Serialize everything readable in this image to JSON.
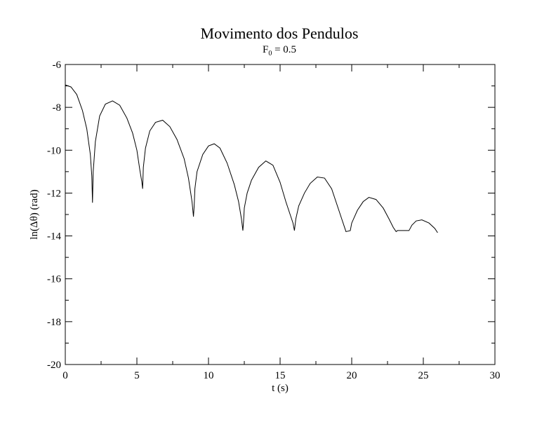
{
  "chart_data": {
    "type": "line",
    "title": "Movimento dos Pendulos",
    "subtitle": {
      "base": "F",
      "subscript": "0",
      "rest": " = 0.5"
    },
    "xlabel": "t (s)",
    "ylabel": "ln(Δθ) (rad)",
    "xlim": [
      0,
      30
    ],
    "ylim": [
      -20,
      -6
    ],
    "x_ticks": [
      0,
      5,
      10,
      15,
      20,
      25,
      30
    ],
    "x_tick_labels": [
      "0",
      "5",
      "10",
      "15",
      "20",
      "25",
      "30"
    ],
    "y_ticks": [
      -20,
      -18,
      -16,
      -14,
      -12,
      -10,
      -8,
      -6
    ],
    "y_tick_labels": [
      "-20",
      "-18",
      "-16",
      "-14",
      "-12",
      "-10",
      "-8",
      "-6"
    ],
    "x_minor_step": 2.5,
    "y_minor_step": 1,
    "grid": false,
    "legend": "none",
    "series": [
      {
        "color": "#000000",
        "x": [
          0.0,
          0.4,
          0.8,
          1.2,
          1.5,
          1.75,
          1.85,
          1.9,
          1.95,
          2.1,
          2.4,
          2.8,
          3.3,
          3.8,
          4.3,
          4.7,
          5.0,
          5.2,
          5.35,
          5.4,
          5.45,
          5.6,
          5.9,
          6.3,
          6.8,
          7.3,
          7.8,
          8.3,
          8.6,
          8.85,
          8.95,
          9.0,
          9.05,
          9.2,
          9.6,
          10.0,
          10.4,
          10.8,
          11.3,
          11.8,
          12.1,
          12.3,
          12.4,
          12.45,
          12.5,
          12.7,
          13.0,
          13.5,
          14.0,
          14.5,
          15.0,
          15.4,
          15.7,
          15.9,
          16.0,
          16.1,
          16.3,
          16.7,
          17.1,
          17.6,
          18.1,
          18.6,
          19.0,
          19.3,
          19.5,
          19.6,
          19.9,
          20.0,
          20.4,
          20.8,
          21.2,
          21.7,
          22.2,
          22.6,
          22.9,
          23.1,
          23.2,
          24.0,
          24.2,
          24.5,
          24.9,
          25.4,
          25.8,
          26.0
        ],
        "y": [
          -6.95,
          -7.05,
          -7.4,
          -8.15,
          -9.0,
          -10.2,
          -11.2,
          -12.45,
          -11.0,
          -9.6,
          -8.4,
          -7.85,
          -7.7,
          -7.9,
          -8.5,
          -9.2,
          -10.0,
          -10.9,
          -11.5,
          -11.8,
          -10.8,
          -9.9,
          -9.1,
          -8.7,
          -8.6,
          -8.9,
          -9.5,
          -10.4,
          -11.3,
          -12.4,
          -13.1,
          -12.6,
          -11.8,
          -11.0,
          -10.2,
          -9.8,
          -9.7,
          -9.9,
          -10.6,
          -11.6,
          -12.4,
          -13.2,
          -13.75,
          -13.3,
          -12.7,
          -12.0,
          -11.4,
          -10.8,
          -10.5,
          -10.7,
          -11.5,
          -12.4,
          -13.0,
          -13.4,
          -13.75,
          -13.2,
          -12.6,
          -12.0,
          -11.55,
          -11.25,
          -11.3,
          -11.8,
          -12.6,
          -13.2,
          -13.6,
          -13.8,
          -13.75,
          -13.4,
          -12.8,
          -12.4,
          -12.2,
          -12.3,
          -12.7,
          -13.2,
          -13.6,
          -13.8,
          -13.75,
          -13.75,
          -13.5,
          -13.3,
          -13.25,
          -13.4,
          -13.65,
          -13.85
        ]
      }
    ]
  }
}
